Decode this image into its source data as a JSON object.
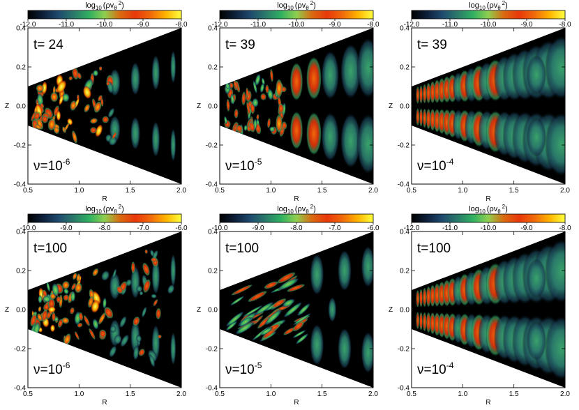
{
  "figure": {
    "description_free": true
  },
  "colors": {
    "background": "#000000",
    "colormap": [
      "#000000",
      "#0d1f3a",
      "#1e4a6e",
      "#2a7a6a",
      "#2fb060",
      "#8fcf50",
      "#d96a10",
      "#e8380a",
      "#f06a0a",
      "#ffb400",
      "#ffff40"
    ]
  },
  "chart_data": [
    {
      "type": "heatmap",
      "panel": "top-left",
      "colorbar_title_text": "log",
      "colorbar_title_sub": "10",
      "colorbar_title_expr": "(ρv",
      "colorbar_title_theta": "θ",
      "colorbar_title_exp": "2",
      "colorbar_title_close": ")",
      "colorbar_ticks": [
        "-12.0",
        "-11.0",
        "-10.0",
        "-9.0",
        "-8.0"
      ],
      "colorbar_range": [
        -12.0,
        -8.0
      ],
      "time_label": "t= 24",
      "nu_base": "ν=10",
      "nu_exp": "-6",
      "xlabel": "R",
      "ylabel": "Z",
      "xticks": [
        "0.5",
        "1.0",
        "1.5",
        "2.0"
      ],
      "yticks": [
        "-0.4",
        "-0.2",
        "0.0",
        "0.2",
        "0.4"
      ],
      "xlim": [
        0.5,
        2.0
      ],
      "ylim": [
        -0.4,
        0.4
      ],
      "style": "turbulent-low"
    },
    {
      "type": "heatmap",
      "panel": "top-middle",
      "colorbar_title_text": "log",
      "colorbar_title_sub": "10",
      "colorbar_title_expr": "(ρv",
      "colorbar_title_theta": "θ",
      "colorbar_title_exp": "2",
      "colorbar_title_close": ")",
      "colorbar_ticks": [
        "-12.0",
        "-11.0",
        "-10.0",
        "-9.0",
        "-8.0"
      ],
      "colorbar_range": [
        -12.0,
        -8.0
      ],
      "time_label": "t= 39",
      "nu_base": "ν=10",
      "nu_exp": "-5",
      "xlabel": "R",
      "ylabel": "Z",
      "xticks": [
        "0.5",
        "1.0",
        "1.5",
        "2.0"
      ],
      "yticks": [
        "-0.4",
        "-0.2",
        "0.0",
        "0.2",
        "0.4"
      ],
      "xlim": [
        0.5,
        2.0
      ],
      "ylim": [
        -0.4,
        0.4
      ],
      "style": "mixed"
    },
    {
      "type": "heatmap",
      "panel": "top-right",
      "colorbar_title_text": "log",
      "colorbar_title_sub": "10",
      "colorbar_title_expr": "(ρv",
      "colorbar_title_theta": "θ",
      "colorbar_title_exp": "2",
      "colorbar_title_close": ")",
      "colorbar_ticks": [
        "-12.0",
        "-11.0",
        "-10.0",
        "-9.0",
        "-8.0"
      ],
      "colorbar_range": [
        -12.0,
        -8.0
      ],
      "time_label": "t= 39",
      "nu_base": "ν=10",
      "nu_exp": "-4",
      "xlabel": "R",
      "ylabel": "Z",
      "xticks": [
        "0.5",
        "1.0",
        "1.5",
        "2.0"
      ],
      "yticks": [
        "-0.4",
        "-0.2",
        "0.0",
        "0.2",
        "0.4"
      ],
      "xlim": [
        0.5,
        2.0
      ],
      "ylim": [
        -0.4,
        0.4
      ],
      "style": "regular"
    },
    {
      "type": "heatmap",
      "panel": "bottom-left",
      "colorbar_title_text": "log",
      "colorbar_title_sub": "10",
      "colorbar_title_expr": "(ρv",
      "colorbar_title_theta": "θ",
      "colorbar_title_exp": "2",
      "colorbar_title_close": ")",
      "colorbar_ticks": [
        "-10.0",
        "-9.0",
        "-8.0",
        "-7.0",
        "-6.0"
      ],
      "colorbar_range": [
        -10.0,
        -6.0
      ],
      "time_label": "t=100",
      "nu_base": "ν=10",
      "nu_exp": "-6",
      "xlabel": "R",
      "ylabel": "Z",
      "xticks": [
        "0.5",
        "1.0",
        "1.5",
        "2.0"
      ],
      "yticks": [
        "-0.4",
        "-0.2",
        "0.0",
        "0.2",
        "0.4"
      ],
      "xlim": [
        0.5,
        2.0
      ],
      "ylim": [
        -0.4,
        0.4
      ],
      "style": "turbulent-high"
    },
    {
      "type": "heatmap",
      "panel": "bottom-middle",
      "colorbar_title_text": "log",
      "colorbar_title_sub": "10",
      "colorbar_title_expr": "(ρv",
      "colorbar_title_theta": "θ",
      "colorbar_title_exp": "2",
      "colorbar_title_close": ")",
      "colorbar_ticks": [
        "-10.0",
        "-9.0",
        "-8.0",
        "-7.0",
        "-6.0"
      ],
      "colorbar_range": [
        -10.0,
        -6.0
      ],
      "time_label": "t=100",
      "nu_base": "ν=10",
      "nu_exp": "-5",
      "xlabel": "R",
      "ylabel": "Z",
      "xticks": [
        "0.5",
        "1.0",
        "1.5",
        "2.0"
      ],
      "yticks": [
        "-0.4",
        "-0.2",
        "0.0",
        "0.2",
        "0.4"
      ],
      "xlim": [
        0.5,
        2.0
      ],
      "ylim": [
        -0.4,
        0.4
      ],
      "style": "filament"
    },
    {
      "type": "heatmap",
      "panel": "bottom-right",
      "colorbar_title_text": "log",
      "colorbar_title_sub": "10",
      "colorbar_title_expr": "(ρv",
      "colorbar_title_theta": "θ",
      "colorbar_title_exp": "2",
      "colorbar_title_close": ")",
      "colorbar_ticks": [
        "-12.0",
        "-11.0",
        "-10.0",
        "-9.0",
        "-8.0"
      ],
      "colorbar_range": [
        -12.0,
        -8.0
      ],
      "time_label": "t=100",
      "nu_base": "ν=10",
      "nu_exp": "-4",
      "xlabel": "R",
      "ylabel": "Z",
      "xticks": [
        "0.5",
        "1.0",
        "1.5",
        "2.0"
      ],
      "yticks": [
        "-0.4",
        "-0.2",
        "0.0",
        "0.2",
        "0.4"
      ],
      "xlim": [
        0.5,
        2.0
      ],
      "ylim": [
        -0.4,
        0.4
      ],
      "style": "regular"
    }
  ]
}
